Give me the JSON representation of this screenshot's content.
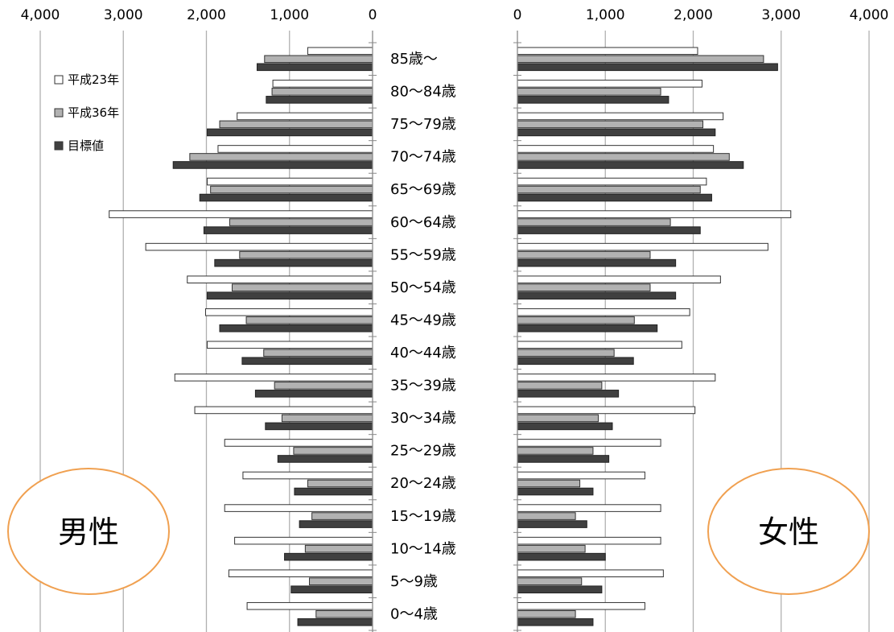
{
  "chart_data": {
    "type": "bar",
    "orientation": "horizontal",
    "layout": "population-pyramid",
    "categories": [
      "85歳～",
      "80～84歳",
      "75～79歳",
      "70～74歳",
      "65～69歳",
      "60～64歳",
      "55～59歳",
      "50～54歳",
      "45～49歳",
      "40～44歳",
      "35～39歳",
      "30～34歳",
      "25～29歳",
      "20～24歳",
      "15～19歳",
      "10～14歳",
      "5～9歳",
      "0～4歳"
    ],
    "series": [
      {
        "name": "平成23年",
        "color": "#ffffff"
      },
      {
        "name": "平成36年",
        "color": "#b2b2b2"
      },
      {
        "name": "目標値",
        "color": "#404040"
      }
    ],
    "panels": [
      {
        "label": "男性",
        "axis_side": "left",
        "xlim": [
          0,
          4000
        ],
        "ticks": [
          "0",
          "1,000",
          "2,000",
          "3,000",
          "4,000"
        ],
        "values": {
          "平成23年": [
            780,
            1200,
            1630,
            1860,
            1990,
            3170,
            2730,
            2230,
            2010,
            1990,
            2380,
            2140,
            1780,
            1560,
            1780,
            1660,
            1730,
            1510
          ],
          "平成36年": [
            1300,
            1210,
            1840,
            2200,
            1950,
            1720,
            1600,
            1690,
            1520,
            1310,
            1180,
            1090,
            950,
            780,
            730,
            810,
            760,
            680
          ],
          "目標値": [
            1390,
            1280,
            1990,
            2400,
            2080,
            2030,
            1900,
            1990,
            1840,
            1570,
            1410,
            1290,
            1140,
            940,
            880,
            1060,
            980,
            900
          ]
        }
      },
      {
        "label": "女性",
        "axis_side": "right",
        "xlim": [
          0,
          4000
        ],
        "ticks": [
          "0",
          "1,000",
          "2,000",
          "3,000",
          "4,000"
        ],
        "values": {
          "平成23年": [
            2050,
            2100,
            2340,
            2230,
            2150,
            3110,
            2850,
            2310,
            1960,
            1870,
            2250,
            2020,
            1630,
            1450,
            1630,
            1630,
            1660,
            1450
          ],
          "平成36年": [
            2800,
            1630,
            2110,
            2410,
            2080,
            1740,
            1510,
            1510,
            1330,
            1100,
            960,
            920,
            860,
            710,
            660,
            770,
            730,
            660
          ],
          "目標値": [
            2960,
            1720,
            2250,
            2570,
            2210,
            2080,
            1800,
            1800,
            1590,
            1320,
            1150,
            1080,
            1040,
            860,
            790,
            1000,
            960,
            860
          ]
        }
      }
    ],
    "legend": {
      "position": "top-left",
      "entries": [
        "平成23年",
        "平成36年",
        "目標値"
      ]
    },
    "grid": true,
    "gender_badge_color": "#f0a050"
  }
}
